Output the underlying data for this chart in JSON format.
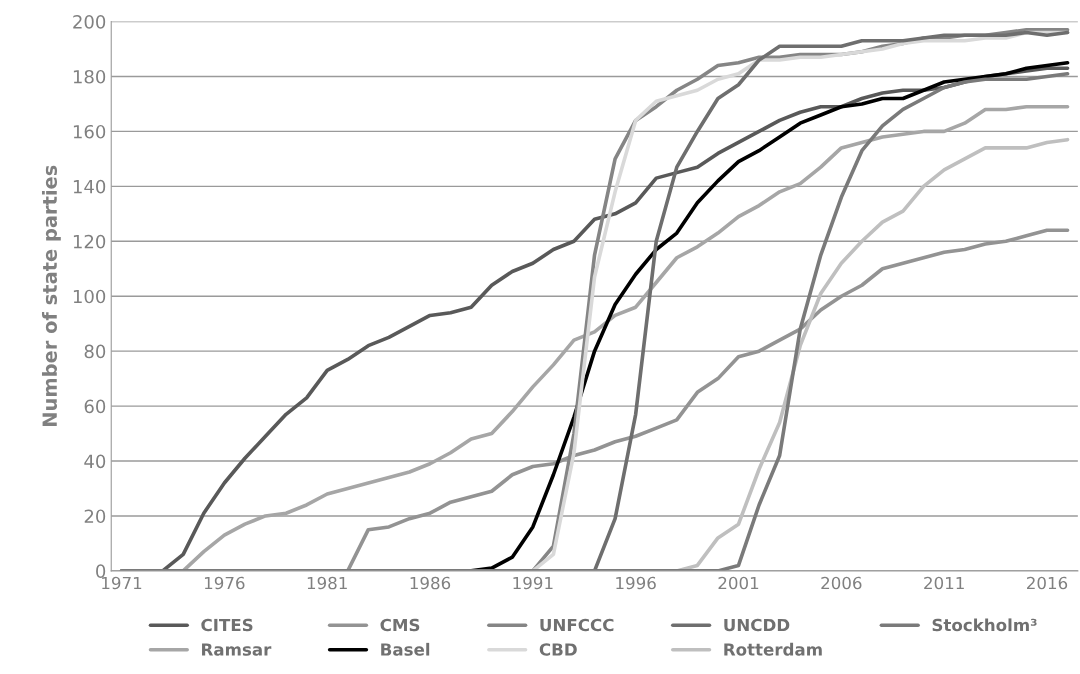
{
  "chart_data": {
    "type": "line",
    "ylabel": "Number of state parties",
    "x": [
      1971,
      1972,
      1973,
      1974,
      1975,
      1976,
      1977,
      1978,
      1979,
      1980,
      1981,
      1982,
      1983,
      1984,
      1985,
      1986,
      1987,
      1988,
      1989,
      1990,
      1991,
      1992,
      1993,
      1994,
      1995,
      1996,
      1997,
      1998,
      1999,
      2000,
      2001,
      2002,
      2003,
      2004,
      2005,
      2006,
      2007,
      2008,
      2009,
      2010,
      2011,
      2012,
      2013,
      2014,
      2015,
      2016,
      2017
    ],
    "series": [
      {
        "name": "CITES",
        "color": "#595959",
        "values": [
          0,
          0,
          0,
          6,
          21,
          32,
          41,
          49,
          57,
          63,
          73,
          77,
          82,
          85,
          89,
          93,
          94,
          96,
          104,
          109,
          112,
          117,
          120,
          128,
          130,
          134,
          143,
          145,
          147,
          152,
          156,
          160,
          164,
          167,
          169,
          169,
          172,
          174,
          175,
          175,
          176,
          178,
          180,
          181,
          182,
          183,
          183
        ]
      },
      {
        "name": "Ramsar",
        "color": "#a6a6a6",
        "values": [
          0,
          0,
          0,
          0,
          7,
          13,
          17,
          20,
          21,
          24,
          28,
          30,
          32,
          34,
          36,
          39,
          43,
          48,
          50,
          58,
          67,
          75,
          84,
          87,
          93,
          96,
          105,
          114,
          118,
          123,
          129,
          133,
          138,
          141,
          147,
          154,
          156,
          158,
          159,
          160,
          160,
          163,
          168,
          168,
          169,
          169,
          169
        ]
      },
      {
        "name": "CMS",
        "color": "#939393",
        "values": [
          0,
          0,
          0,
          0,
          0,
          0,
          0,
          0,
          0,
          0,
          0,
          0,
          15,
          16,
          19,
          21,
          25,
          27,
          29,
          35,
          38,
          39,
          42,
          44,
          47,
          49,
          52,
          55,
          65,
          70,
          78,
          80,
          84,
          88,
          95,
          100,
          104,
          110,
          112,
          114,
          116,
          117,
          119,
          120,
          122,
          124,
          124
        ]
      },
      {
        "name": "Basel",
        "color": "#000000",
        "values": [
          0,
          0,
          0,
          0,
          0,
          0,
          0,
          0,
          0,
          0,
          0,
          0,
          0,
          0,
          0,
          0,
          0,
          0,
          1,
          5,
          16,
          35,
          56,
          80,
          97,
          108,
          117,
          123,
          134,
          142,
          149,
          153,
          158,
          163,
          166,
          169,
          170,
          172,
          172,
          175,
          178,
          179,
          180,
          181,
          183,
          184,
          185
        ]
      },
      {
        "name": "UNFCCC",
        "color": "#858585",
        "values": [
          0,
          0,
          0,
          0,
          0,
          0,
          0,
          0,
          0,
          0,
          0,
          0,
          0,
          0,
          0,
          0,
          0,
          0,
          0,
          0,
          0,
          9,
          50,
          115,
          150,
          164,
          169,
          175,
          179,
          184,
          185,
          187,
          187,
          188,
          188,
          188,
          189,
          191,
          192,
          194,
          194,
          195,
          195,
          196,
          197,
          197,
          197
        ]
      },
      {
        "name": "CBD",
        "color": "#d9d9d9",
        "values": [
          0,
          0,
          0,
          0,
          0,
          0,
          0,
          0,
          0,
          0,
          0,
          0,
          0,
          0,
          0,
          0,
          0,
          0,
          0,
          0,
          0,
          6,
          43,
          107,
          138,
          164,
          171,
          173,
          175,
          179,
          181,
          186,
          186,
          187,
          187,
          188,
          189,
          190,
          192,
          193,
          193,
          193,
          194,
          194,
          196,
          196,
          196
        ]
      },
      {
        "name": "UNCDD",
        "color": "#6e6e6e",
        "values": [
          0,
          0,
          0,
          0,
          0,
          0,
          0,
          0,
          0,
          0,
          0,
          0,
          0,
          0,
          0,
          0,
          0,
          0,
          0,
          0,
          0,
          0,
          0,
          0,
          19,
          57,
          120,
          147,
          160,
          172,
          177,
          186,
          191,
          191,
          191,
          191,
          193,
          193,
          193,
          194,
          195,
          195,
          195,
          195,
          196,
          195,
          196
        ]
      },
      {
        "name": "Rotterdam",
        "color": "#bfbfbf",
        "values": [
          0,
          0,
          0,
          0,
          0,
          0,
          0,
          0,
          0,
          0,
          0,
          0,
          0,
          0,
          0,
          0,
          0,
          0,
          0,
          0,
          0,
          0,
          0,
          0,
          0,
          0,
          0,
          0,
          2,
          12,
          17,
          37,
          54,
          82,
          101,
          112,
          120,
          127,
          131,
          140,
          146,
          150,
          154,
          154,
          154,
          156,
          157
        ]
      },
      {
        "name": "Stockholm³",
        "color": "#7a7a7a",
        "values": [
          0,
          0,
          0,
          0,
          0,
          0,
          0,
          0,
          0,
          0,
          0,
          0,
          0,
          0,
          0,
          0,
          0,
          0,
          0,
          0,
          0,
          0,
          0,
          0,
          0,
          0,
          0,
          0,
          0,
          0,
          2,
          24,
          42,
          88,
          115,
          136,
          153,
          162,
          168,
          172,
          176,
          178,
          179,
          179,
          179,
          180,
          181
        ]
      }
    ],
    "xlim": [
      1970.5,
      2017.5
    ],
    "xticks": [
      1971,
      1976,
      1981,
      1986,
      1991,
      1996,
      2001,
      2006,
      2011,
      2016
    ],
    "ylim": [
      0,
      200
    ],
    "yticks": [
      0,
      20,
      40,
      60,
      80,
      100,
      120,
      140,
      160,
      180,
      200
    ],
    "grid": "y",
    "legend": "bottom",
    "marker": "none",
    "line_style": "solid"
  }
}
